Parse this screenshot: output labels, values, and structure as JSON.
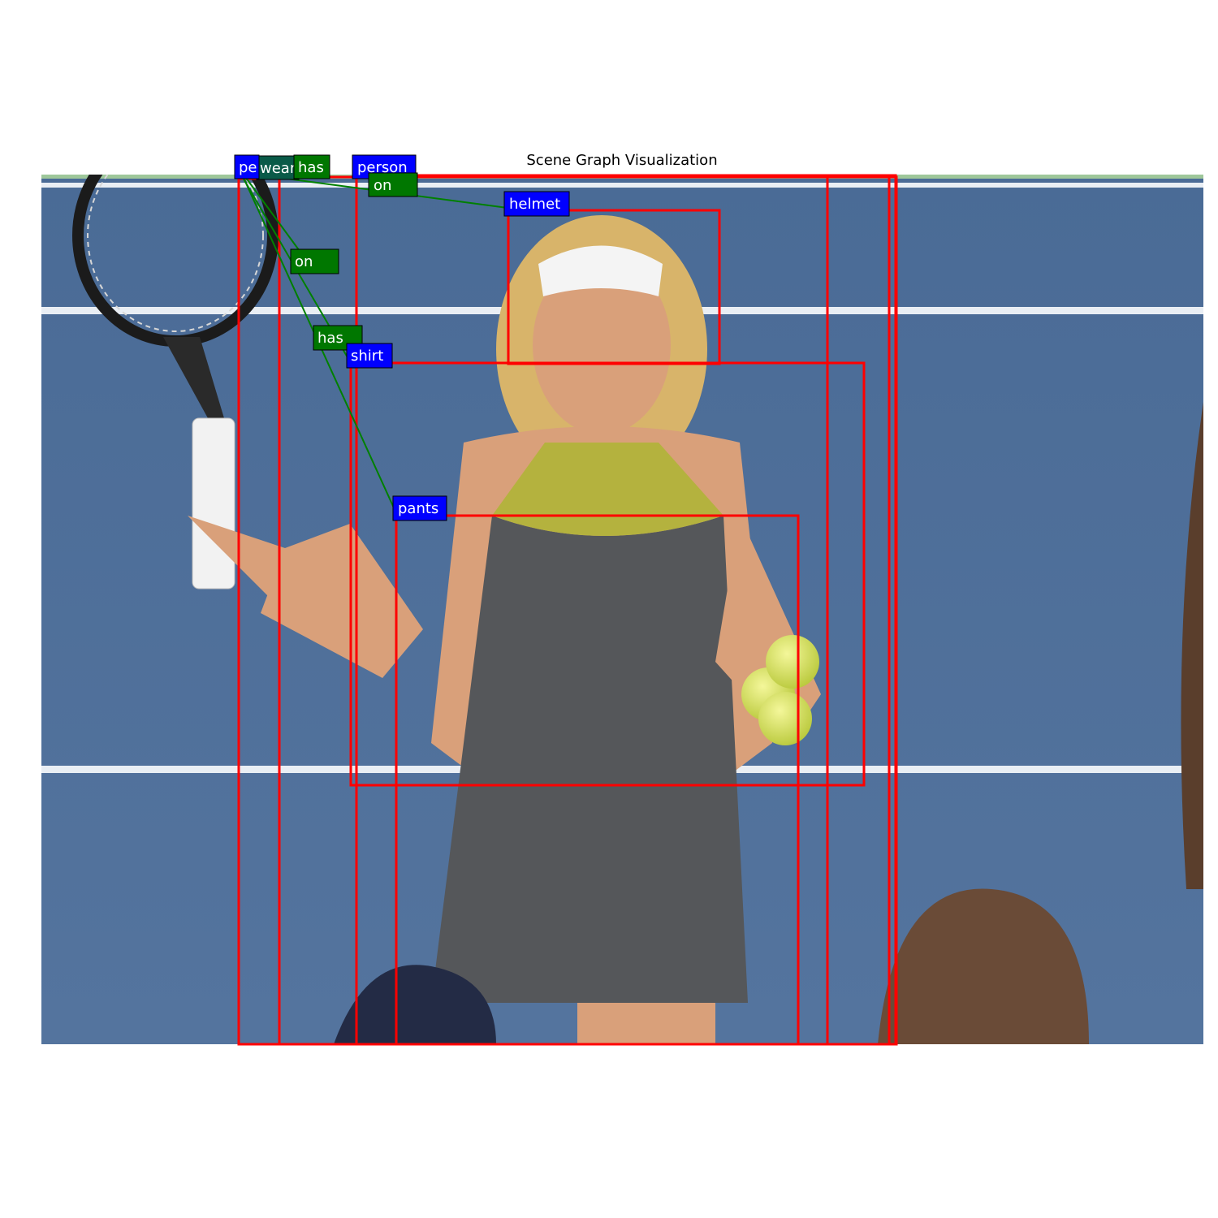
{
  "figure": {
    "title": "Scene Graph Visualization"
  },
  "colors": {
    "box_stroke": "#ff0000",
    "object_label_bg": "#0000ff",
    "relation_label_bg": "#007700",
    "edge": "#008000",
    "court": "#4e6f99",
    "court_lines": "#f2f4f7",
    "outer_margin": "#7fb27f"
  },
  "objects": [
    {
      "id": "person_a",
      "label": "pe"
    },
    {
      "id": "person_b",
      "label": "person"
    },
    {
      "id": "helmet",
      "label": "helmet"
    },
    {
      "id": "shirt",
      "label": "shirt"
    },
    {
      "id": "pants",
      "label": "pants"
    }
  ],
  "relations": [
    {
      "id": "rel_wear",
      "label": "wear"
    },
    {
      "id": "rel_has_top",
      "label": "has"
    },
    {
      "id": "rel_on_top",
      "label": "on"
    },
    {
      "id": "rel_on_mid",
      "label": "on"
    },
    {
      "id": "rel_has_mid",
      "label": "has"
    }
  ],
  "icons": {
    "racket": "tennis-racket-icon",
    "balls": "tennis-balls-icon"
  }
}
